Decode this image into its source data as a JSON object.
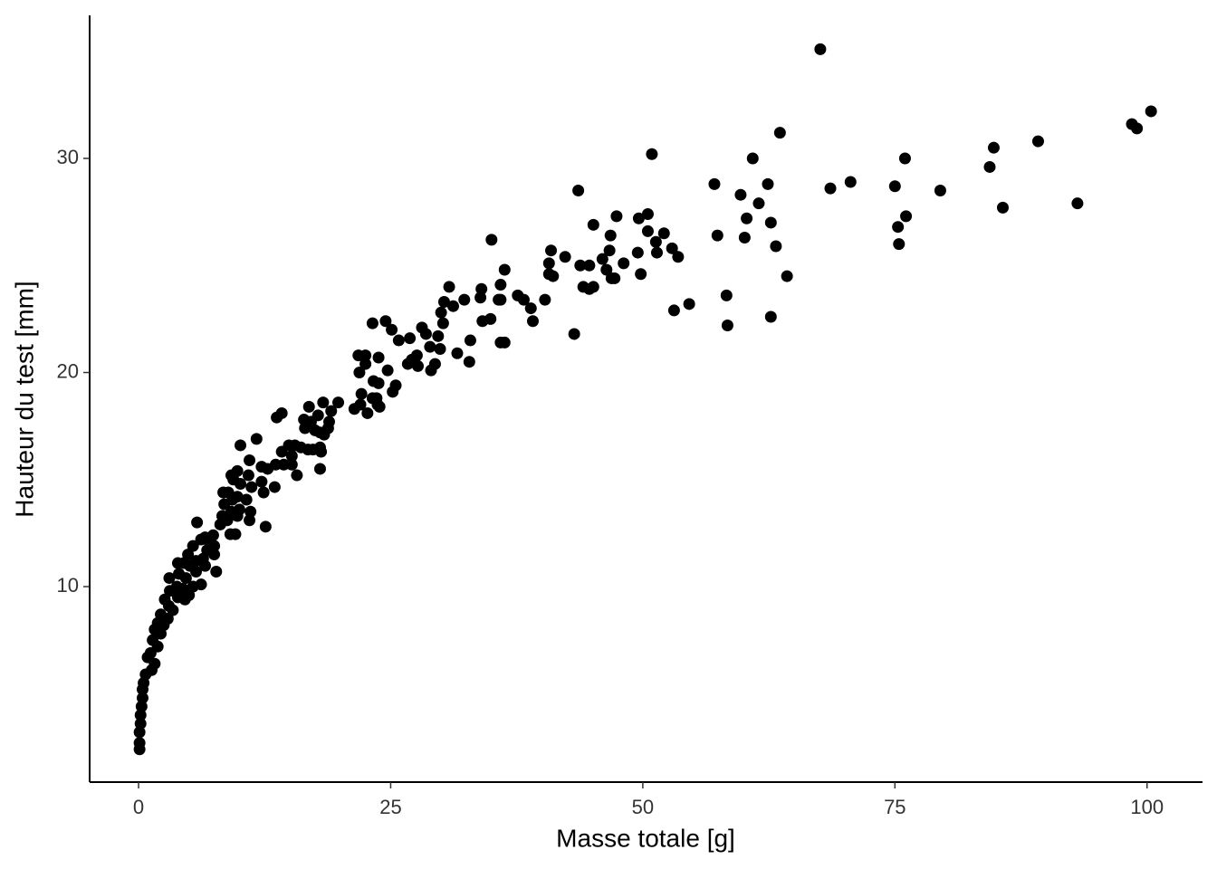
{
  "chart_data": {
    "type": "scatter",
    "x_label": "Masse totale  [g]",
    "y_label": "Hauteur du test  [mm]",
    "color": "#000000",
    "xlim": [
      -4.85,
      105.5
    ],
    "ylim": [
      0.87,
      36.68
    ],
    "xticks": [
      0,
      25,
      50,
      75,
      100
    ],
    "yticks": [
      10,
      20,
      30
    ],
    "grid": false,
    "x": [
      67.6,
      100.4,
      98.5,
      99.0,
      63.6,
      84.8,
      89.2,
      50.9,
      60.9,
      76.0,
      84.4,
      70.6,
      68.6,
      79.5,
      75.0,
      57.1,
      62.4,
      43.6,
      59.7,
      61.5,
      93.1,
      85.7,
      76.1,
      60.3,
      62.7,
      47.4,
      49.6,
      50.5,
      45.1,
      75.3,
      57.4,
      60.1,
      52.1,
      46.8,
      50.5,
      51.3,
      35.0,
      63.2,
      75.4,
      52.9,
      40.9,
      46.7,
      49.5,
      51.4,
      53.5,
      42.3,
      46.0,
      40.7,
      48.1,
      43.8,
      44.7,
      46.4,
      36.3,
      40.7,
      49.8,
      41.1,
      64.3,
      46.9,
      47.2,
      35.9,
      30.8,
      44.1,
      44.7,
      34.0,
      45.1,
      37.6,
      58.3,
      35.7,
      32.3,
      30.3,
      40.3,
      38.2,
      38.9,
      54.6,
      53.1,
      31.2,
      35.9,
      33.9,
      30.0,
      34.9,
      34.1,
      39.1,
      62.7,
      58.4,
      30.2,
      23.2,
      24.5,
      43.2,
      28.1,
      25.1,
      36.3,
      35.9,
      32.9,
      29.7,
      26.9,
      28.5,
      25.8,
      28.9,
      29.9,
      31.6,
      21.8,
      22.5,
      23.8,
      27.6,
      27.1,
      32.8,
      22.5,
      29.4,
      26.7,
      27.7,
      24.7,
      29.0,
      21.9,
      23.3,
      23.8,
      25.5,
      22.1,
      25.2,
      23.2,
      23.6,
      18.3,
      19.8,
      22.0,
      23.7,
      16.9,
      21.4,
      23.9,
      19.1,
      22.7,
      14.2,
      17.8,
      13.7,
      18.9,
      16.4,
      17.1,
      18.8,
      18.0,
      17.5,
      16.5,
      18.4,
      10.1,
      11.7,
      14.9,
      15.5,
      16.1,
      18.0,
      17.3,
      14.2,
      16.8,
      18.1,
      15.2,
      11.0,
      13.6,
      14.4,
      15.2,
      12.2,
      18.0,
      9.8,
      12.8,
      15.7,
      9.2,
      10.9,
      12.2,
      9.4,
      10.1,
      13.5,
      11.2,
      12.4,
      8.4,
      8.9,
      9.8,
      10.7,
      9.3,
      8.5,
      10.0,
      11.1,
      9.2,
      8.3,
      9.8,
      11.0,
      8.8,
      8.1,
      12.6,
      5.8,
      9.1,
      9.6,
      7.4,
      6.2,
      6.6,
      7.1,
      7.5,
      5.4,
      6.8,
      4.9,
      6.4,
      7.5,
      4.5,
      5.7,
      3.9,
      6.6,
      5.1,
      7.7,
      5.7,
      4.0,
      4.7,
      6.2,
      5.4,
      3.05,
      3.8,
      4.4,
      3.1,
      5.0,
      3.9,
      2.6,
      4.6,
      3.0,
      3.4,
      2.2,
      2.9,
      1.9,
      2.5,
      1.6,
      2.2,
      1.4,
      1.9,
      1.2,
      0.9,
      1.6,
      1.3,
      0.7,
      0.5,
      0.4,
      0.4,
      0.3,
      0.2,
      0.2,
      0.1,
      0.1,
      0.1
    ],
    "y": [
      35.1,
      32.2,
      31.6,
      31.4,
      31.2,
      30.5,
      30.8,
      30.2,
      30.0,
      30.0,
      29.6,
      28.9,
      28.6,
      28.5,
      28.7,
      28.8,
      28.8,
      28.5,
      28.3,
      27.9,
      27.9,
      27.7,
      27.3,
      27.2,
      27.0,
      27.3,
      27.2,
      27.4,
      26.9,
      26.8,
      26.4,
      26.3,
      26.5,
      26.4,
      26.6,
      26.1,
      26.2,
      25.9,
      26.0,
      25.8,
      25.7,
      25.7,
      25.6,
      25.6,
      25.4,
      25.4,
      25.3,
      25.1,
      25.1,
      25.0,
      25.0,
      24.8,
      24.8,
      24.6,
      24.6,
      24.5,
      24.5,
      24.4,
      24.4,
      24.1,
      24.0,
      24.0,
      23.9,
      23.9,
      24.0,
      23.6,
      23.6,
      23.4,
      23.4,
      23.3,
      23.4,
      23.4,
      23.0,
      23.2,
      22.9,
      23.1,
      23.4,
      23.5,
      22.8,
      22.5,
      22.4,
      22.4,
      22.6,
      22.2,
      22.3,
      22.3,
      22.4,
      21.8,
      22.1,
      22.0,
      21.4,
      21.4,
      21.5,
      21.7,
      21.6,
      21.8,
      21.5,
      21.2,
      21.1,
      20.9,
      20.8,
      20.8,
      20.7,
      20.8,
      20.6,
      20.5,
      20.4,
      20.4,
      20.4,
      20.3,
      20.1,
      20.1,
      20.0,
      19.6,
      19.5,
      19.4,
      19.0,
      19.1,
      18.8,
      18.8,
      18.6,
      18.6,
      18.5,
      18.5,
      18.4,
      18.3,
      18.4,
      18.2,
      18.1,
      18.1,
      18.0,
      17.9,
      17.7,
      17.8,
      17.7,
      17.4,
      17.2,
      17.3,
      17.4,
      17.1,
      16.6,
      16.9,
      16.6,
      16.6,
      16.5,
      16.5,
      16.4,
      16.3,
      16.4,
      16.3,
      16.1,
      15.9,
      15.7,
      15.7,
      15.7,
      15.6,
      15.5,
      15.4,
      15.5,
      15.2,
      15.2,
      15.2,
      14.9,
      15.0,
      14.8,
      14.65,
      14.65,
      14.4,
      14.4,
      14.4,
      14.2,
      14.06,
      14.06,
      13.85,
      13.6,
      13.5,
      13.5,
      13.3,
      13.3,
      13.1,
      13.1,
      12.9,
      12.8,
      13.0,
      12.45,
      12.45,
      12.4,
      12.2,
      12.3,
      12.0,
      11.9,
      11.9,
      11.7,
      11.5,
      11.3,
      11.5,
      11.1,
      11.2,
      11.1,
      10.97,
      10.97,
      10.7,
      10.7,
      10.6,
      10.4,
      10.1,
      10.0,
      10.4,
      10.0,
      9.9,
      9.8,
      9.6,
      9.5,
      9.4,
      9.4,
      9.1,
      8.9,
      8.7,
      8.5,
      8.3,
      8.2,
      8.0,
      7.8,
      7.5,
      7.2,
      6.9,
      6.7,
      6.4,
      6.1,
      5.9,
      5.5,
      5.2,
      4.8,
      4.4,
      4.0,
      3.6,
      3.2,
      2.7,
      2.4
    ]
  }
}
